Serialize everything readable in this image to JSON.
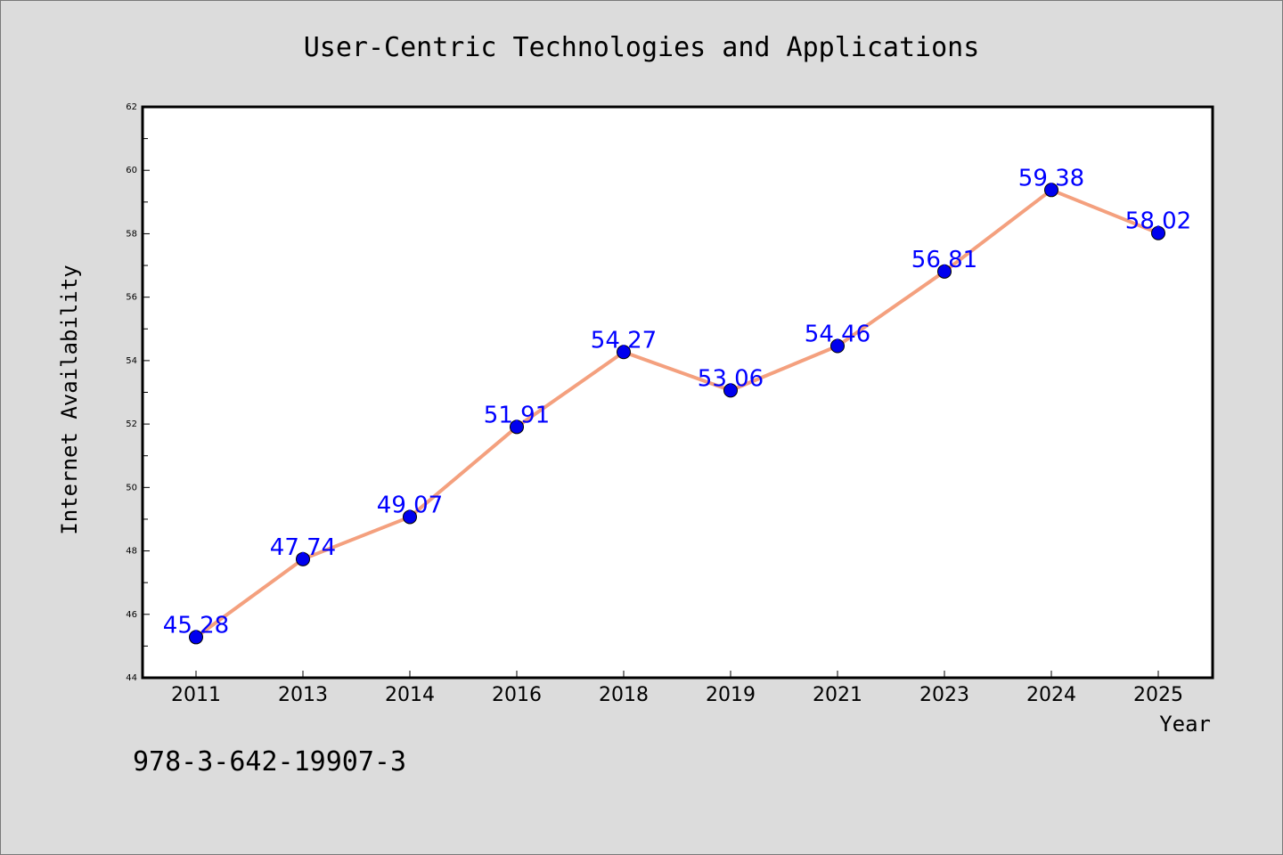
{
  "chart_data": {
    "type": "line",
    "title": "User-Centric Technologies and Applications",
    "xlabel": "Year",
    "ylabel": "Internet Availability",
    "categories": [
      "2011",
      "2013",
      "2014",
      "2016",
      "2018",
      "2019",
      "2021",
      "2023",
      "2024",
      "2025"
    ],
    "values": [
      45.28,
      47.74,
      49.07,
      51.91,
      54.27,
      53.06,
      54.46,
      56.81,
      59.38,
      58.02
    ],
    "data_labels": [
      "45.28",
      "47.74",
      "49.07",
      "51.91",
      "54.27",
      "53.06",
      "54.46",
      "56.81",
      "59.38",
      "58.02"
    ],
    "ylim": [
      44,
      62
    ],
    "yticks": [
      "44",
      "46",
      "48",
      "50",
      "52",
      "54",
      "56",
      "58",
      "60",
      "62"
    ],
    "grid": false,
    "legend": "none",
    "colors": {
      "line": "#f4a07e",
      "marker": "#0000ee",
      "label": "#0000ff",
      "background": "#dcdcdc",
      "plot_background": "#ffffff"
    }
  },
  "footer": {
    "note": "978-3-642-19907-3"
  }
}
